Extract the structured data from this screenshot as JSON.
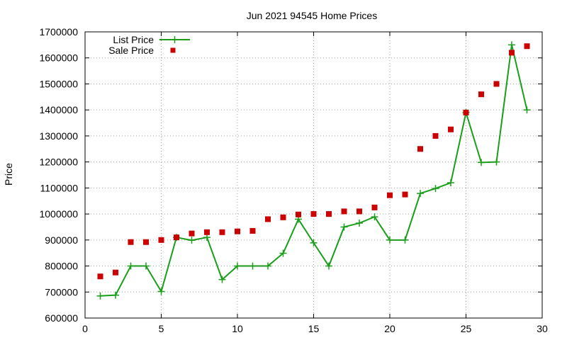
{
  "chart_data": {
    "type": "line",
    "title": "Jun 2021 94545 Home Prices",
    "xlabel": "",
    "ylabel": "Price",
    "xlim": [
      0,
      30
    ],
    "ylim": [
      600000,
      1700000
    ],
    "x_ticks": [
      0,
      5,
      10,
      15,
      20,
      25,
      30
    ],
    "y_ticks": [
      600000,
      700000,
      800000,
      900000,
      1000000,
      1100000,
      1200000,
      1300000,
      1400000,
      1500000,
      1600000,
      1700000
    ],
    "grid": true,
    "legend_position": "top-left",
    "series": [
      {
        "name": "List Price",
        "style": "line-with-plus-markers",
        "color": "#1a9e1a",
        "x": [
          1,
          2,
          3,
          4,
          5,
          6,
          7,
          8,
          9,
          10,
          11,
          12,
          13,
          14,
          15,
          16,
          17,
          18,
          19,
          20,
          21,
          22,
          23,
          24,
          25,
          26,
          27,
          28,
          29
        ],
        "values": [
          685000,
          688000,
          800000,
          800000,
          702000,
          910000,
          899000,
          910000,
          748000,
          800000,
          800000,
          800000,
          849000,
          980000,
          889000,
          800000,
          950000,
          965000,
          989000,
          900000,
          900000,
          1079000,
          1098000,
          1120000,
          1390000,
          1198000,
          1200000,
          1650000,
          1400000
        ]
      },
      {
        "name": "Sale Price",
        "style": "square-markers",
        "color": "#cc0000",
        "x": [
          1,
          2,
          3,
          4,
          5,
          6,
          7,
          8,
          9,
          10,
          11,
          12,
          13,
          14,
          15,
          16,
          17,
          18,
          19,
          20,
          21,
          22,
          23,
          24,
          25,
          26,
          27,
          28,
          29
        ],
        "values": [
          760000,
          775000,
          892000,
          892000,
          900000,
          910000,
          925000,
          930000,
          930000,
          933000,
          935000,
          980000,
          987000,
          998000,
          1000000,
          1000000,
          1010000,
          1010000,
          1025000,
          1072000,
          1075000,
          1250000,
          1300000,
          1325000,
          1390000,
          1460000,
          1500000,
          1620000,
          1645000
        ]
      }
    ]
  }
}
